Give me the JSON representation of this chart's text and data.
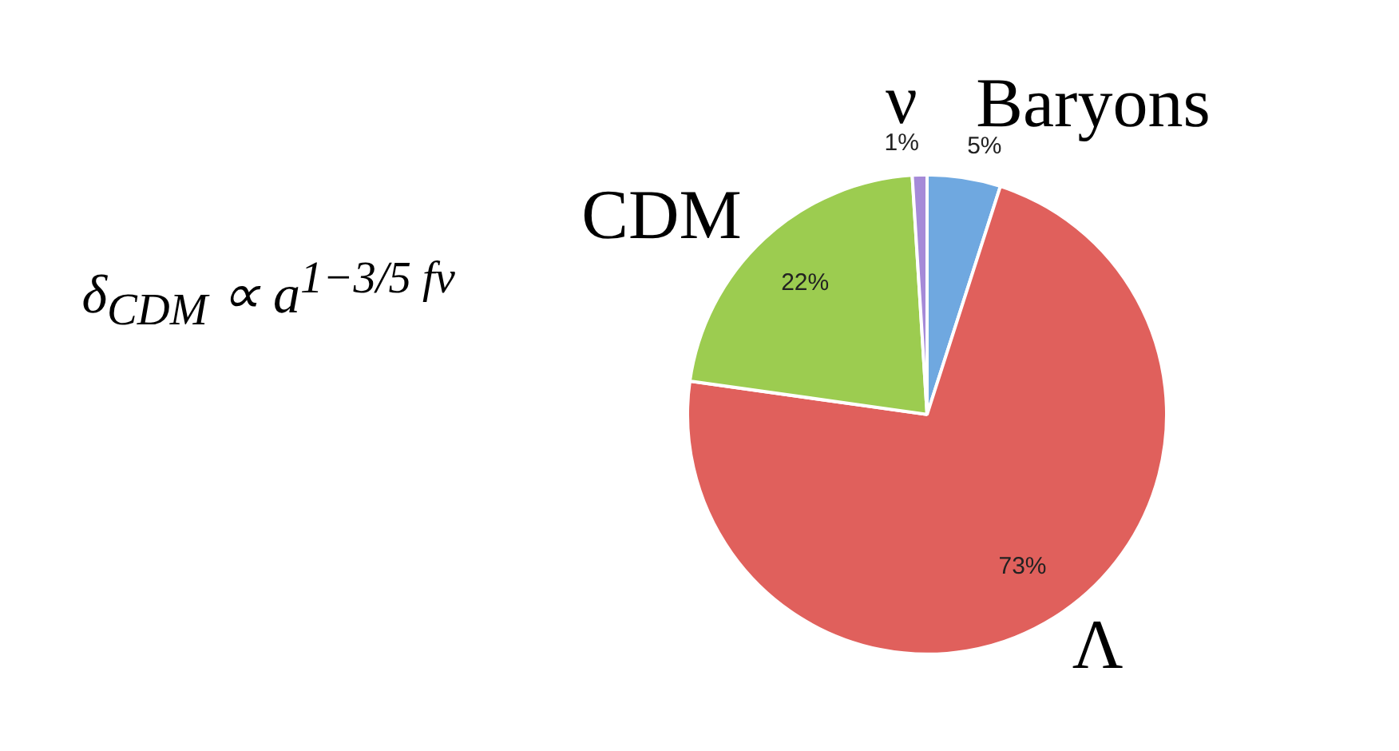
{
  "chart_data": {
    "type": "pie",
    "categories": [
      "Baryons",
      "Λ",
      "CDM",
      "ν"
    ],
    "values": [
      5,
      73,
      22,
      1
    ],
    "colors": [
      "#6fa8e0",
      "#e0605c",
      "#9ccc50",
      "#a58ad8"
    ],
    "value_labels": [
      "5%",
      "73%",
      "22%",
      "1%"
    ],
    "annotations": [
      "δ$_{CDM}$ ∝ a$^{1−3/5 fν}$"
    ]
  }
}
